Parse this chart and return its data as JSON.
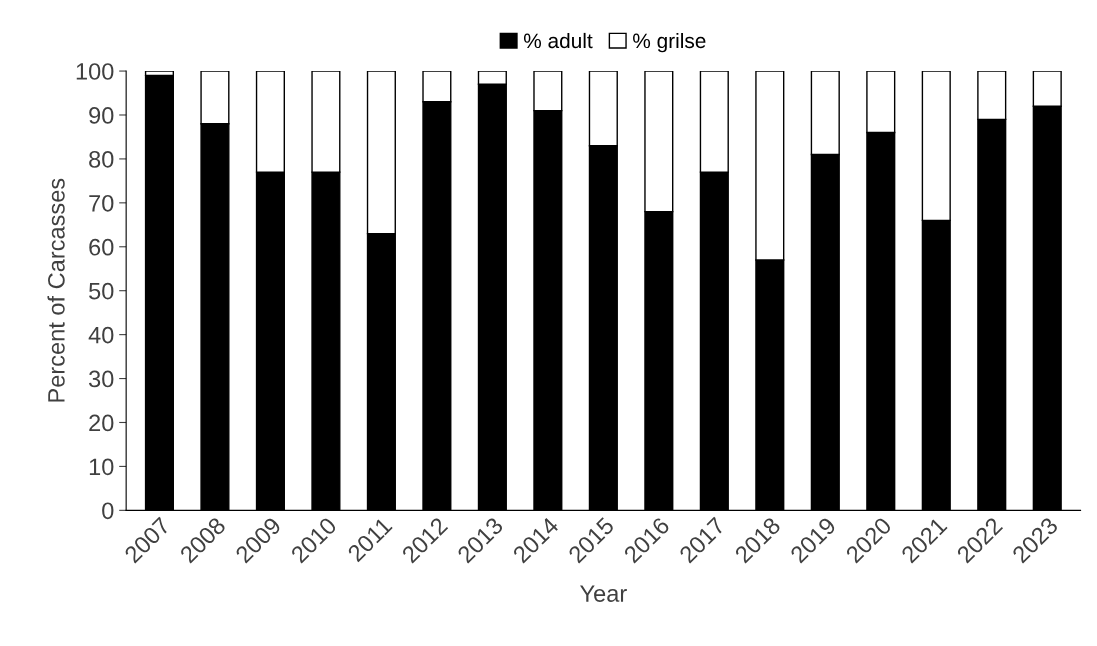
{
  "chart_data": {
    "type": "bar",
    "stacked": true,
    "xlabel": "Year",
    "ylabel": "Percent of Carcasses",
    "categories": [
      "2007",
      "2008",
      "2009",
      "2010",
      "2011",
      "2012",
      "2013",
      "2014",
      "2015",
      "2016",
      "2017",
      "2018",
      "2019",
      "2020",
      "2021",
      "2022",
      "2023"
    ],
    "series": [
      {
        "name": "% adult",
        "color": "#000000",
        "values": [
          99,
          88,
          77,
          77,
          63,
          93,
          97,
          91,
          83,
          68,
          77,
          57,
          81,
          86,
          66,
          89,
          92
        ]
      },
      {
        "name": "% grilse",
        "color": "#ffffff",
        "values": [
          1,
          12,
          23,
          23,
          37,
          7,
          3,
          9,
          17,
          32,
          23,
          43,
          19,
          14,
          34,
          11,
          8
        ]
      }
    ],
    "ylim": [
      0,
      100
    ],
    "yticks": [
      0,
      10,
      20,
      30,
      40,
      50,
      60,
      70,
      80,
      90,
      100
    ],
    "grid": false,
    "legend": "top"
  }
}
